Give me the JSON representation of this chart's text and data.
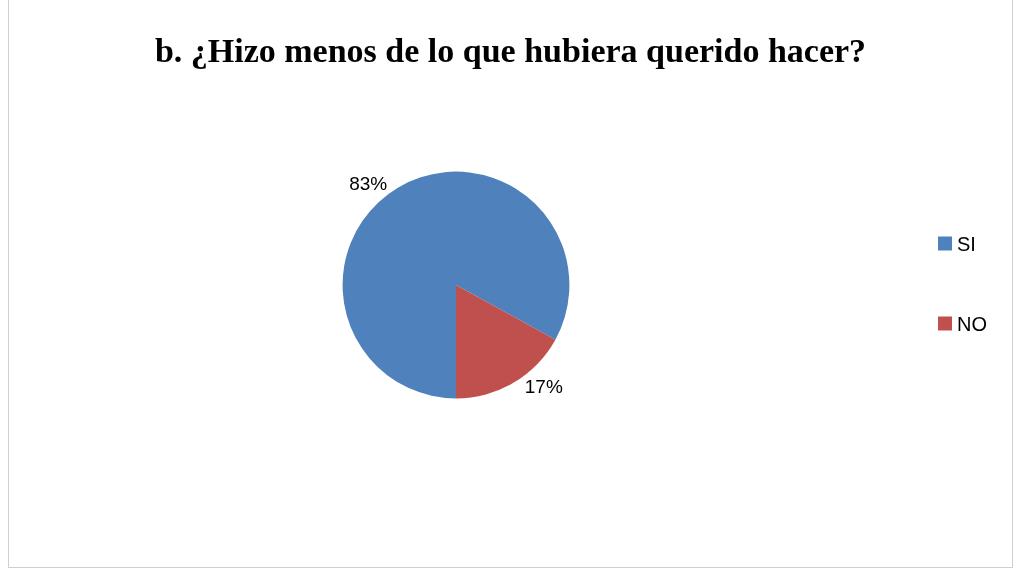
{
  "chart_data": {
    "type": "pie",
    "title": "b. ¿Hizo menos de lo que hubiera querido hacer?",
    "categories": [
      "SI",
      "NO"
    ],
    "values": [
      83,
      17
    ],
    "colors": [
      "#4f81bd",
      "#c0504d"
    ],
    "value_labels": [
      "83%",
      "17%"
    ],
    "legend": "right"
  }
}
